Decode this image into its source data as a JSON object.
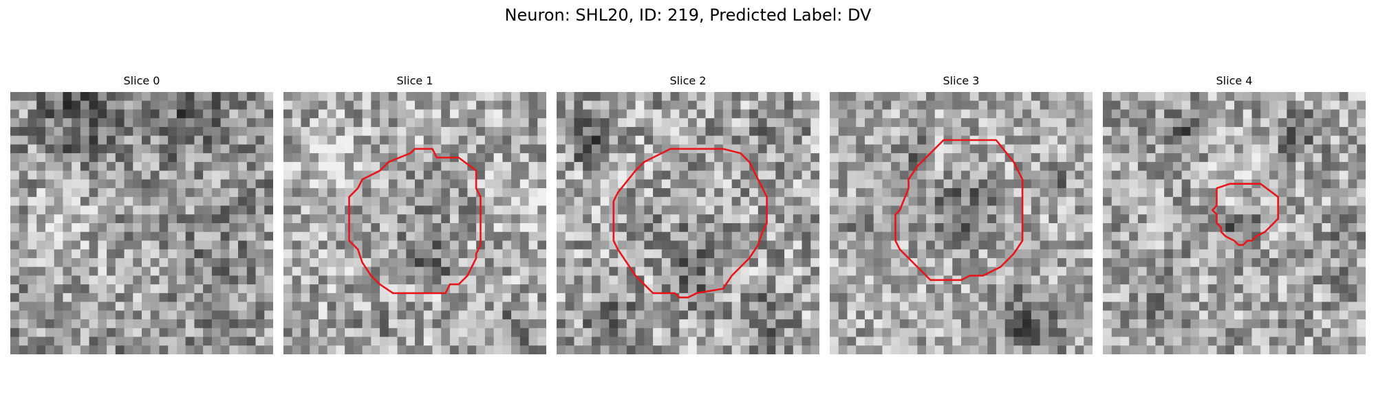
{
  "figure": {
    "title": "Neuron: SHL20, ID: 219, Predicted Label: DV"
  },
  "colors": {
    "contour": "#e8161a",
    "background": "#ffffff"
  },
  "slices": [
    {
      "title": "Slice 0",
      "has_contour": false
    },
    {
      "title": "Slice 1",
      "has_contour": true
    },
    {
      "title": "Slice 2",
      "has_contour": true
    },
    {
      "title": "Slice 3",
      "has_contour": true
    },
    {
      "title": "Slice 4",
      "has_contour": true
    }
  ]
}
